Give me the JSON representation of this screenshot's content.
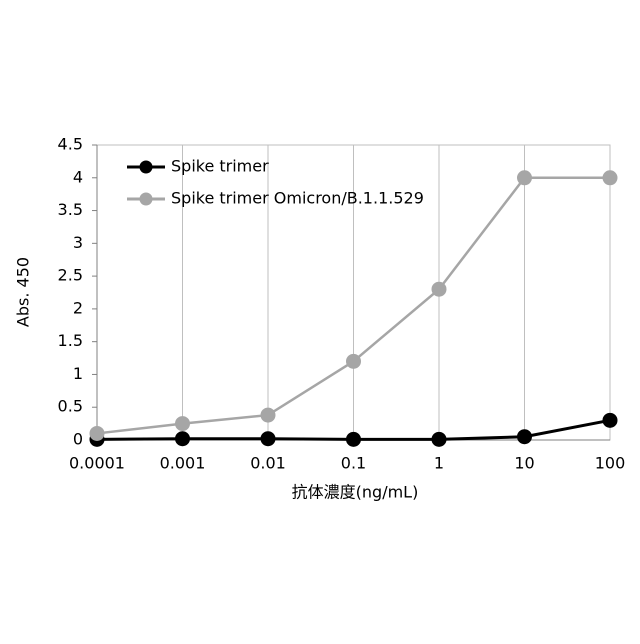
{
  "chart_data": {
    "type": "line",
    "x_label": "抗体濃度(ng/mL)",
    "y_label": "Abs. 450",
    "x": [
      0.0001,
      0.001,
      0.01,
      0.1,
      1,
      10,
      100
    ],
    "series": [
      {
        "name": "Spike trimer",
        "color": "#000000",
        "values": [
          0.01,
          0.02,
          0.02,
          0.01,
          0.01,
          0.05,
          0.3
        ]
      },
      {
        "name": "Spike trimer Omicron/B.1.1.529",
        "color": "#a6a6a6",
        "values": [
          0.1,
          0.25,
          0.38,
          1.2,
          2.3,
          4.0,
          4.0
        ]
      }
    ],
    "xscale": "log",
    "xlim": [
      0.0001,
      100
    ],
    "xticks": [
      0.0001,
      0.001,
      0.01,
      0.1,
      1,
      10,
      100
    ],
    "ylim": [
      0,
      4.5
    ],
    "yticks": [
      0,
      0.5,
      1,
      1.5,
      2,
      2.5,
      3,
      3.5,
      4,
      4.5
    ],
    "grid": "x",
    "legend": "upper-left"
  }
}
